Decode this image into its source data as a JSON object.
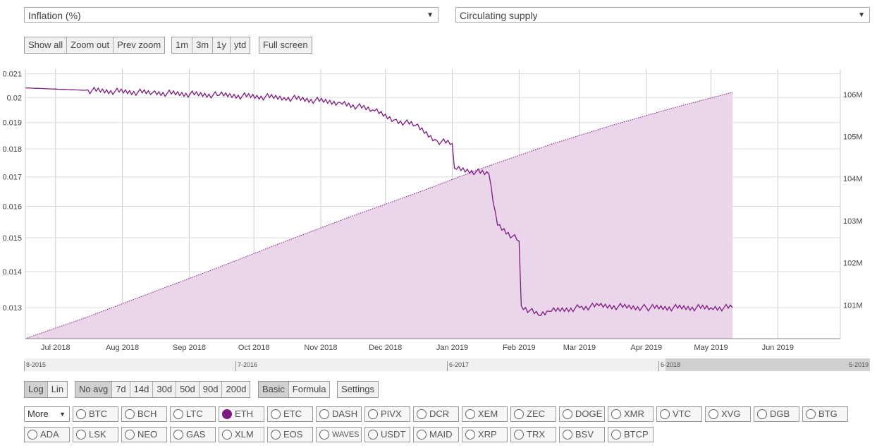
{
  "selectors": {
    "left": {
      "value": "Inflation (%)"
    },
    "right": {
      "value": "Circulating supply"
    }
  },
  "zoom_buttons": [
    "Show all",
    "Zoom out",
    "Prev zoom"
  ],
  "range_buttons": [
    "1m",
    "3m",
    "1y",
    "ytd"
  ],
  "fullscreen_label": "Full screen",
  "scale_buttons": [
    {
      "label": "Log",
      "active": true
    },
    {
      "label": "Lin",
      "active": false
    }
  ],
  "avg_buttons": [
    {
      "label": "No avg",
      "active": true
    },
    {
      "label": "7d",
      "active": false
    },
    {
      "label": "14d",
      "active": false
    },
    {
      "label": "30d",
      "active": false
    },
    {
      "label": "50d",
      "active": false
    },
    {
      "label": "90d",
      "active": false
    },
    {
      "label": "200d",
      "active": false
    }
  ],
  "mode_buttons": [
    {
      "label": "Basic",
      "active": true
    },
    {
      "label": "Formula",
      "active": false
    }
  ],
  "settings_label": "Settings",
  "navigator_labels": [
    "8-2015",
    "7-2016",
    "6-2017",
    "6-2018",
    "5-2019"
  ],
  "more_label": "More",
  "coins_row1": [
    {
      "label": "BTC",
      "on": false
    },
    {
      "label": "BCH",
      "on": false
    },
    {
      "label": "LTC",
      "on": false
    },
    {
      "label": "ETH",
      "on": true
    },
    {
      "label": "ETC",
      "on": false
    },
    {
      "label": "DASH",
      "on": false
    },
    {
      "label": "PIVX",
      "on": false
    },
    {
      "label": "DCR",
      "on": false
    },
    {
      "label": "XEM",
      "on": false
    },
    {
      "label": "ZEC",
      "on": false
    },
    {
      "label": "DOGE",
      "on": false
    },
    {
      "label": "XMR",
      "on": false
    },
    {
      "label": "VTC",
      "on": false
    },
    {
      "label": "XVG",
      "on": false
    },
    {
      "label": "DGB",
      "on": false
    },
    {
      "label": "BTG",
      "on": false
    }
  ],
  "coins_row2": [
    {
      "label": "ADA",
      "on": false
    },
    {
      "label": "LSK",
      "on": false
    },
    {
      "label": "NEO",
      "on": false
    },
    {
      "label": "GAS",
      "on": false
    },
    {
      "label": "XLM",
      "on": false
    },
    {
      "label": "EOS",
      "on": false
    },
    {
      "label": "WAVES",
      "on": false
    },
    {
      "label": "USDT",
      "on": false
    },
    {
      "label": "MAID",
      "on": false
    },
    {
      "label": "XRP",
      "on": false
    },
    {
      "label": "TRX",
      "on": false
    },
    {
      "label": "BSV",
      "on": false
    },
    {
      "label": "BTCP",
      "on": false
    }
  ],
  "colors": {
    "series": "#7d1a80",
    "area": "#ead5ea"
  },
  "chart_data": {
    "type": "line",
    "x_tick_labels": [
      "Jul 2018",
      "Aug 2018",
      "Sep 2018",
      "Oct 2018",
      "Nov 2018",
      "Dec 2018",
      "Jan 2019",
      "Feb 2019",
      "Mar 2019",
      "Apr 2019",
      "May 2019",
      "Jun 2019"
    ],
    "left_axis": {
      "ticks": [
        0.013,
        0.014,
        0.015,
        0.016,
        0.017,
        0.018,
        0.019,
        0.02,
        0.021
      ],
      "tick_labels": [
        "0.013",
        "0.014",
        "0.015",
        "0.016",
        "0.017",
        "0.018",
        "0.019",
        "0.02",
        "0.021"
      ],
      "scale": "log",
      "range": [
        0.0122,
        0.0212
      ]
    },
    "right_axis": {
      "ticks": [
        101,
        102,
        103,
        104,
        105,
        106
      ],
      "tick_labels": [
        "101M",
        "102M",
        "103M",
        "104M",
        "105M",
        "106M"
      ],
      "range": [
        100.2,
        106.6
      ]
    },
    "grid": true,
    "series": [
      {
        "axis": "left",
        "style": "line",
        "x": [
          "2018-06-17",
          "2018-07-15",
          "2018-08-15",
          "2018-09-15",
          "2018-10-15",
          "2018-11-10",
          "2018-11-25",
          "2018-12-05",
          "2018-12-15",
          "2018-12-25",
          "2019-01-01",
          "2019-01-02",
          "2019-01-18",
          "2019-01-22",
          "2019-02-01",
          "2019-02-02",
          "2019-02-10",
          "2019-02-15",
          "2019-03-01",
          "2019-03-10",
          "2019-04-01",
          "2019-05-01",
          "2019-05-11"
        ],
        "y": [
          0.0204,
          0.0203,
          0.0202,
          0.0201,
          0.02,
          0.0198,
          0.0195,
          0.0191,
          0.0189,
          0.0183,
          0.0182,
          0.0173,
          0.0171,
          0.0154,
          0.0149,
          0.01305,
          0.0128,
          0.0129,
          0.013,
          0.01305,
          0.013,
          0.013,
          0.013
        ]
      },
      {
        "axis": "right",
        "style": "area",
        "x": [
          "2018-06-17",
          "2018-07-15",
          "2018-08-15",
          "2018-09-15",
          "2018-10-15",
          "2018-11-15",
          "2018-12-15",
          "2019-01-15",
          "2019-02-15",
          "2019-03-15",
          "2019-04-15",
          "2019-05-11"
        ],
        "y": [
          100.2,
          100.7,
          101.3,
          101.9,
          102.5,
          103.1,
          103.65,
          104.25,
          104.8,
          105.25,
          105.7,
          106.05
        ]
      }
    ]
  }
}
